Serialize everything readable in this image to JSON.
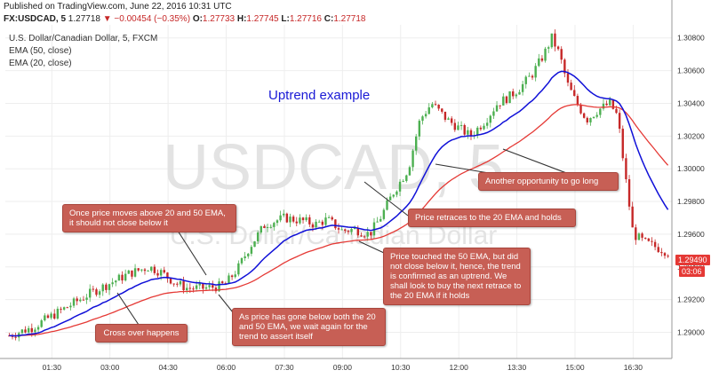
{
  "header": {
    "published": "Published on TradingView.com, June 22, 2016 10:31 UTC",
    "symbol": "FX:USDCAD, 5",
    "last": "1.27718",
    "change": "▼ −0.00454 (−0.35%)",
    "o_label": "O:",
    "o_value": "1.27733",
    "h_label": "H:",
    "h_value": "1.27745",
    "l_label": "L:",
    "l_value": "1.27716",
    "c_label": "C:",
    "c_value": "1.27718"
  },
  "legend": {
    "line1": "U.S. Dollar/Canadian Dollar, 5, FXCM",
    "line2": "EMA (50, close)",
    "line3": "EMA (20, close)"
  },
  "watermark": {
    "symbol": "USDCAD, 5",
    "name": "U.S. Dollar/Canadian Dollar"
  },
  "price_tag": "1.29490",
  "time_tag": "03:06",
  "annotations": {
    "title": "Uptrend example",
    "above_emas": "Once price moves above 20 and 50 EMA, it should not close below it",
    "cross_over": "Cross over happens",
    "below_both": "As price has gone below both the 20 and 50 EMA, we wait again for the trend to assert itself",
    "touched_50": "Price touched the 50 EMA, but did not close below it, hence, the trend is confirmed as an uptrend. We shall look to buy the next retrace to the 20 EMA if it holds",
    "retraces_20": "Price retraces to the 20 EMA and holds",
    "another_opportunity": "Another opportunity to go long"
  },
  "colors": {
    "bull": "#4caf50",
    "bear": "#c62828",
    "ema20": "#1010d8",
    "ema50": "#e53935",
    "annotation_bg": "#c75f55",
    "title": "#1a1ad6"
  },
  "chart_data": {
    "type": "candlestick",
    "title": "U.S. Dollar/Canadian Dollar, 5, FXCM",
    "x_tick_labels": [
      "01:30",
      "03:00",
      "04:30",
      "06:00",
      "07:30",
      "09:00",
      "10:30",
      "12:00",
      "13:30",
      "15:00",
      "16:30"
    ],
    "x_tick_hours": [
      1.5,
      3,
      4.5,
      6,
      7.5,
      9,
      10.5,
      12,
      13.5,
      15,
      16.5
    ],
    "y_tick_labels": [
      "1.29000",
      "1.29200",
      "1.29400",
      "1.29600",
      "1.29800",
      "1.30000",
      "1.30200",
      "1.30400",
      "1.30600",
      "1.30800"
    ],
    "y_ticks": [
      1.29,
      1.292,
      1.294,
      1.296,
      1.298,
      1.3,
      1.302,
      1.304,
      1.306,
      1.308
    ],
    "xlim_hours": [
      0.3,
      17.5
    ],
    "ylim": [
      1.2884,
      1.3088
    ],
    "grid": true,
    "price_path": {
      "hours": [
        0.4,
        1.0,
        1.5,
        2.0,
        2.5,
        3.0,
        3.5,
        4.0,
        4.3,
        4.7,
        5.0,
        5.4,
        5.8,
        6.0,
        6.3,
        6.6,
        7.0,
        7.5,
        8.0,
        8.3,
        8.6,
        9.0,
        9.3,
        9.7,
        10.0,
        10.3,
        10.7,
        11.0,
        11.3,
        11.7,
        12.0,
        12.3,
        12.7,
        13.0,
        13.3,
        13.6,
        13.9,
        14.2,
        14.4,
        14.6,
        14.8,
        15.0,
        15.3,
        15.6,
        15.9,
        16.1,
        16.3,
        16.5,
        16.8,
        17.1,
        17.4
      ],
      "close": [
        1.2898,
        1.2903,
        1.291,
        1.2917,
        1.2924,
        1.293,
        1.2936,
        1.294,
        1.2937,
        1.293,
        1.2927,
        1.2927,
        1.2928,
        1.293,
        1.2939,
        1.2952,
        1.2966,
        1.297,
        1.2968,
        1.2966,
        1.2969,
        1.2962,
        1.2963,
        1.296,
        1.2971,
        1.2985,
        1.3,
        1.303,
        1.304,
        1.303,
        1.3025,
        1.302,
        1.303,
        1.304,
        1.3044,
        1.305,
        1.3058,
        1.307,
        1.308,
        1.307,
        1.3052,
        1.3042,
        1.303,
        1.3036,
        1.304,
        1.3032,
        1.2995,
        1.296,
        1.2955,
        1.2952,
        1.2949
      ]
    },
    "series": [
      {
        "name": "EMA (20, close)",
        "color": "#1010d8"
      },
      {
        "name": "EMA (50, close)",
        "color": "#e53935"
      }
    ],
    "last_price": 1.2949
  }
}
